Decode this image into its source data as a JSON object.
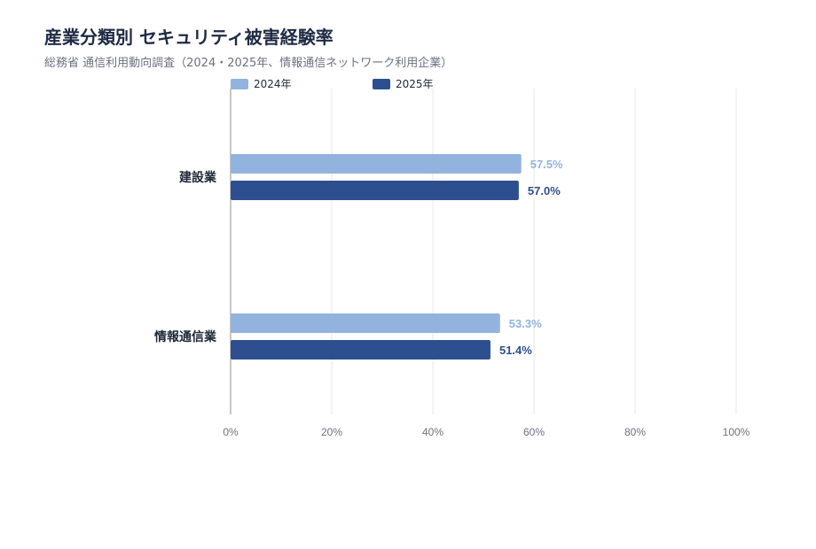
{
  "title": "産業分類別 セキュリティ被害経験率",
  "subtitle": "総務省 通信利用動向調査（2024・2025年、情報通信ネットワーク利用企業）",
  "colors": {
    "series_2024": "#93b3df",
    "series_2025": "#2e4f8f",
    "grid": "#e8e8e8",
    "axis": "#b5b5b5",
    "tick_text": "#6b7280"
  },
  "chart_data": {
    "type": "bar",
    "orientation": "horizontal",
    "title": "産業分類別 セキュリティ被害経験率",
    "subtitle": "総務省 通信利用動向調査（2024・2025年、情報通信ネットワーク利用企業）",
    "categories": [
      "建設業",
      "情報通信業"
    ],
    "series": [
      {
        "name": "2024年",
        "values": [
          57.5,
          53.3
        ],
        "labels": [
          "57.5%",
          "53.3%"
        ]
      },
      {
        "name": "2025年",
        "values": [
          57.0,
          51.4
        ],
        "labels": [
          "57.0%",
          "51.4%"
        ]
      }
    ],
    "xlim": [
      0,
      100
    ],
    "xticks": [
      0,
      20,
      40,
      60,
      80,
      100
    ],
    "xtick_labels": [
      "0%",
      "20%",
      "40%",
      "60%",
      "80%",
      "100%"
    ],
    "xlabel": "",
    "ylabel": "",
    "grid": true,
    "legend": "top-left"
  }
}
